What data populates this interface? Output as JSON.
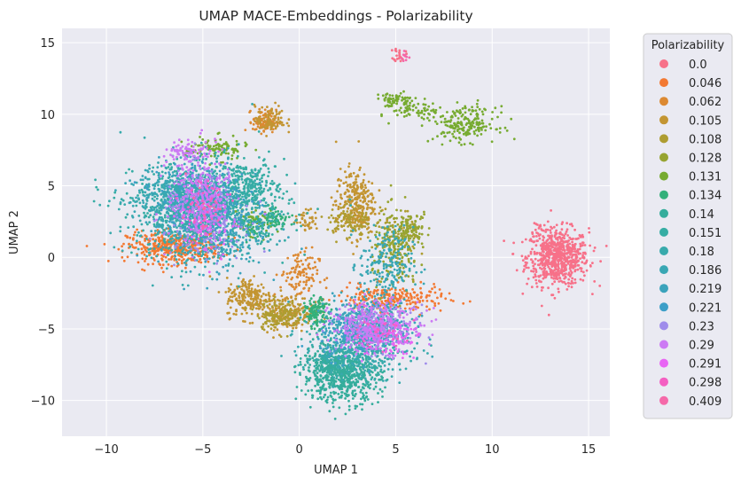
{
  "chart_data": {
    "type": "scatter",
    "title": "UMAP MACE-Embeddings - Polarizability",
    "xlabel": "UMAP 1",
    "ylabel": "UMAP 2",
    "xlim": [
      -12.3,
      16.1
    ],
    "ylim": [
      -12.5,
      16.0
    ],
    "x_ticks": [
      -10,
      -5,
      0,
      5,
      10,
      15
    ],
    "x_tick_labels": [
      "−10",
      "−5",
      "0",
      "5",
      "10",
      "15"
    ],
    "y_ticks": [
      -10,
      -5,
      0,
      5,
      10,
      15
    ],
    "y_tick_labels": [
      "−10",
      "−5",
      "0",
      "5",
      "10",
      "15"
    ],
    "grid": true,
    "legend": {
      "title": "Polarizability",
      "placement": "outside-right"
    },
    "series": [
      {
        "name": "0.0",
        "color": "#f77189",
        "clusters": [
          {
            "cx": 13.4,
            "cy": 0.0,
            "sx": 0.8,
            "sy": 1.0,
            "n": 700
          },
          {
            "cx": 5.2,
            "cy": 14.2,
            "sx": 0.15,
            "sy": 0.25,
            "n": 25
          },
          {
            "cx": 12.3,
            "cy": 2.0,
            "sx": 0.2,
            "sy": 0.3,
            "n": 15
          }
        ]
      },
      {
        "name": "0.046",
        "color": "#f37932",
        "clusters": [
          {
            "cx": -6.5,
            "cy": 0.7,
            "sx": 1.2,
            "sy": 0.55,
            "n": 450
          },
          {
            "cx": 4.7,
            "cy": -2.9,
            "sx": 1.4,
            "sy": 0.45,
            "n": 250
          }
        ]
      },
      {
        "name": "0.062",
        "color": "#dc8932",
        "clusters": [
          {
            "cx": 0.0,
            "cy": -1.2,
            "sx": 0.5,
            "sy": 0.9,
            "n": 110
          },
          {
            "cx": -1.8,
            "cy": 9.5,
            "sx": 0.3,
            "sy": 0.4,
            "n": 90
          }
        ]
      },
      {
        "name": "0.105",
        "color": "#c39532",
        "clusters": [
          {
            "cx": -2.6,
            "cy": -2.8,
            "sx": 0.6,
            "sy": 0.7,
            "n": 200
          },
          {
            "cx": -0.6,
            "cy": -3.8,
            "sx": 0.7,
            "sy": 0.6,
            "n": 180
          },
          {
            "cx": 2.9,
            "cy": 3.8,
            "sx": 0.5,
            "sy": 1.2,
            "n": 280
          },
          {
            "cx": -1.5,
            "cy": 9.6,
            "sx": 0.4,
            "sy": 0.5,
            "n": 90
          },
          {
            "cx": 0.4,
            "cy": 2.6,
            "sx": 0.3,
            "sy": 0.35,
            "n": 40
          }
        ]
      },
      {
        "name": "0.108",
        "color": "#ae9d31",
        "clusters": [
          {
            "cx": -1.0,
            "cy": -4.0,
            "sx": 0.6,
            "sy": 0.5,
            "n": 150
          },
          {
            "cx": 2.6,
            "cy": 2.5,
            "sx": 0.6,
            "sy": 0.6,
            "n": 100
          },
          {
            "cx": 5.2,
            "cy": 1.5,
            "sx": 0.5,
            "sy": 0.9,
            "n": 60
          }
        ]
      },
      {
        "name": "0.128",
        "color": "#97a431",
        "clusters": [
          {
            "cx": 5.0,
            "cy": 0.4,
            "sx": 0.6,
            "sy": 1.4,
            "n": 200
          },
          {
            "cx": 5.8,
            "cy": 2.2,
            "sx": 0.5,
            "sy": 0.5,
            "n": 80
          }
        ]
      },
      {
        "name": "0.131",
        "color": "#77ab31",
        "clusters": [
          {
            "cx": 8.6,
            "cy": 9.3,
            "sx": 0.8,
            "sy": 0.6,
            "n": 200
          },
          {
            "cx": 4.9,
            "cy": 11.0,
            "sx": 0.5,
            "sy": 0.25,
            "n": 60
          },
          {
            "cx": 6.2,
            "cy": 10.3,
            "sx": 0.7,
            "sy": 0.35,
            "n": 70
          },
          {
            "cx": -4.3,
            "cy": 7.6,
            "sx": 0.8,
            "sy": 0.4,
            "n": 100
          },
          {
            "cx": -2.5,
            "cy": 2.5,
            "sx": 0.6,
            "sy": 0.6,
            "n": 70
          }
        ]
      },
      {
        "name": "0.134",
        "color": "#33b07a",
        "clusters": [
          {
            "cx": 0.9,
            "cy": -3.9,
            "sx": 0.3,
            "sy": 0.5,
            "n": 120
          },
          {
            "cx": -1.2,
            "cy": 2.8,
            "sx": 0.35,
            "sy": 0.35,
            "n": 60
          },
          {
            "cx": -2.2,
            "cy": 2.0,
            "sx": 0.4,
            "sy": 0.4,
            "n": 40
          }
        ]
      },
      {
        "name": "0.14",
        "color": "#35ad9c",
        "clusters": [
          {
            "cx": 2.2,
            "cy": -8.3,
            "sx": 1.0,
            "sy": 0.9,
            "n": 600
          },
          {
            "cx": 1.8,
            "cy": -7.0,
            "sx": 0.8,
            "sy": 0.6,
            "n": 150
          }
        ]
      },
      {
        "name": "0.151",
        "color": "#36ada4",
        "clusters": [
          {
            "cx": -4.5,
            "cy": 3.5,
            "sx": 2.0,
            "sy": 1.6,
            "n": 700
          },
          {
            "cx": -2.8,
            "cy": 5.0,
            "sx": 0.8,
            "sy": 0.8,
            "n": 200
          }
        ]
      },
      {
        "name": "0.18",
        "color": "#38aaac",
        "clusters": [
          {
            "cx": -5.5,
            "cy": 3.0,
            "sx": 1.6,
            "sy": 1.8,
            "n": 600
          },
          {
            "cx": 3.0,
            "cy": -6.5,
            "sx": 1.4,
            "sy": 1.0,
            "n": 300
          }
        ]
      },
      {
        "name": "0.186",
        "color": "#39a7b4",
        "clusters": [
          {
            "cx": -6.0,
            "cy": 4.5,
            "sx": 1.2,
            "sy": 1.0,
            "n": 400
          },
          {
            "cx": 4.5,
            "cy": -0.5,
            "sx": 0.7,
            "sy": 1.3,
            "n": 200
          },
          {
            "cx": 3.5,
            "cy": -5.0,
            "sx": 1.2,
            "sy": 0.9,
            "n": 300
          }
        ]
      },
      {
        "name": "0.219",
        "color": "#3ba3bc",
        "clusters": [
          {
            "cx": -4.5,
            "cy": 2.0,
            "sx": 1.4,
            "sy": 1.4,
            "n": 300
          },
          {
            "cx": 3.8,
            "cy": -4.2,
            "sx": 1.0,
            "sy": 0.8,
            "n": 200
          }
        ]
      },
      {
        "name": "0.221",
        "color": "#3d9fc8",
        "clusters": [
          {
            "cx": -5.0,
            "cy": 4.0,
            "sx": 1.2,
            "sy": 1.4,
            "n": 200
          },
          {
            "cx": 3.0,
            "cy": -5.5,
            "sx": 1.0,
            "sy": 0.8,
            "n": 150
          }
        ]
      },
      {
        "name": "0.23",
        "color": "#9f8ceb",
        "clusters": [
          {
            "cx": -5.0,
            "cy": 3.0,
            "sx": 1.0,
            "sy": 1.5,
            "n": 250
          },
          {
            "cx": 4.0,
            "cy": -5.0,
            "sx": 1.0,
            "sy": 0.8,
            "n": 200
          }
        ]
      },
      {
        "name": "0.29",
        "color": "#cc7af4",
        "clusters": [
          {
            "cx": -5.2,
            "cy": 4.5,
            "sx": 0.8,
            "sy": 1.6,
            "n": 250
          },
          {
            "cx": 4.0,
            "cy": -4.8,
            "sx": 1.2,
            "sy": 0.9,
            "n": 300
          },
          {
            "cx": -5.8,
            "cy": 7.5,
            "sx": 0.5,
            "sy": 0.3,
            "n": 60
          }
        ]
      },
      {
        "name": "0.291",
        "color": "#e866f4",
        "clusters": [
          {
            "cx": -4.8,
            "cy": 2.5,
            "sx": 0.7,
            "sy": 1.2,
            "n": 80
          },
          {
            "cx": 4.5,
            "cy": -5.5,
            "sx": 0.9,
            "sy": 0.7,
            "n": 80
          }
        ]
      },
      {
        "name": "0.298",
        "color": "#f45fc2",
        "clusters": [
          {
            "cx": -5.0,
            "cy": 3.5,
            "sx": 0.7,
            "sy": 1.2,
            "n": 40
          },
          {
            "cx": 4.0,
            "cy": -5.2,
            "sx": 0.8,
            "sy": 0.6,
            "n": 40
          }
        ]
      },
      {
        "name": "0.409",
        "color": "#f569a9",
        "clusters": [
          {
            "cx": -5.0,
            "cy": 3.0,
            "sx": 0.6,
            "sy": 1.0,
            "n": 25
          },
          {
            "cx": 5.5,
            "cy": 14.0,
            "sx": 0.1,
            "sy": 0.15,
            "n": 10
          }
        ]
      }
    ]
  }
}
